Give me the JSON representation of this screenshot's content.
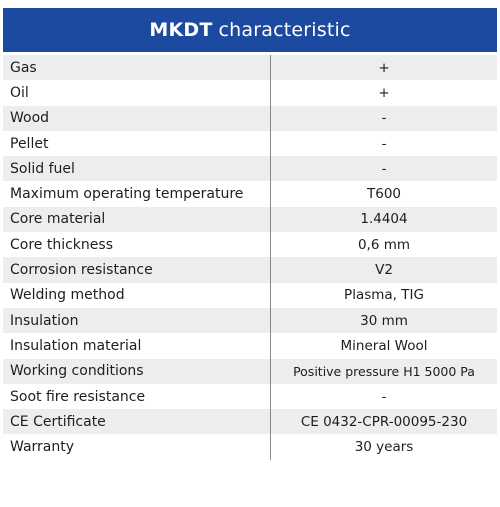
{
  "header": {
    "brand": "MKDT",
    "suffix": "characteristic"
  },
  "rows": [
    {
      "label": "Gas",
      "value": "+"
    },
    {
      "label": "Oil",
      "value": "+"
    },
    {
      "label": "Wood",
      "value": "-"
    },
    {
      "label": "Pellet",
      "value": "-"
    },
    {
      "label": "Solid fuel",
      "value": "-"
    },
    {
      "label": "Maximum operating temperature",
      "value": "T600"
    },
    {
      "label": "Core material",
      "value": "1.4404"
    },
    {
      "label": "Core thickness",
      "value": "0,6 mm"
    },
    {
      "label": "Corrosion resistance",
      "value": "V2"
    },
    {
      "label": "Welding method",
      "value": "Plasma, TIG"
    },
    {
      "label": "Insulation",
      "value": "30 mm"
    },
    {
      "label": "Insulation material",
      "value": "Mineral Wool"
    },
    {
      "label": "Working conditions",
      "value": "Positive pressure H1 5000 Pa"
    },
    {
      "label": "Soot fire resistance",
      "value": "-"
    },
    {
      "label": "CE Certificate",
      "value": "CE 0432-CPR-00095-230"
    },
    {
      "label": "Warranty",
      "value": "30 years"
    }
  ],
  "colors": {
    "header_bg": "#1b4aa0",
    "header_text": "#ffffff",
    "stripe": "#ededed",
    "divider": "#8a8a8a"
  }
}
